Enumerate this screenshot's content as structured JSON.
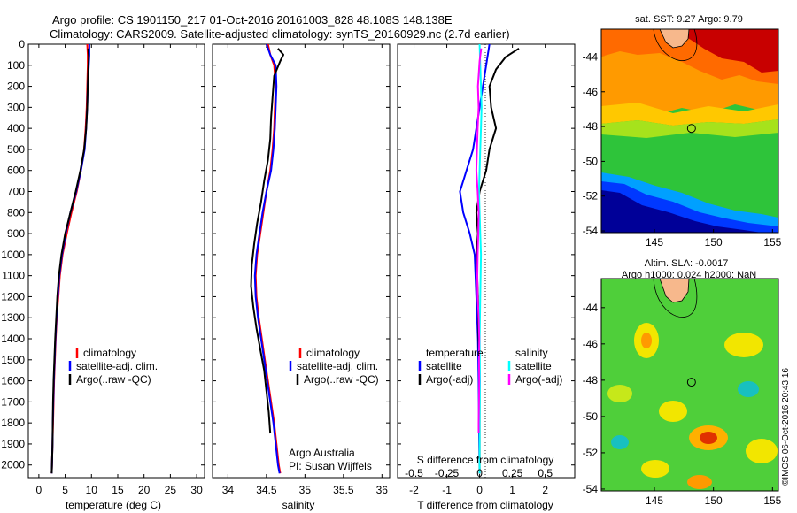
{
  "header": {
    "line1": "Argo profile: CS 1901150_217 01-Oct-2016 20161003_828 48.108S 148.138E",
    "line2": "Climatology: CARS2009. Satellite-adjusted climatology: synTS_20160929.nc (2.7d earlier)"
  },
  "colors": {
    "climatology": "#ff0000",
    "satellite": "#0000ff",
    "argo": "#000000",
    "salinity_satellite": "#00ffff",
    "salinity_argo": "#ff00ff"
  },
  "chart_data": [
    {
      "id": "temperature",
      "type": "line",
      "xlabel": "temperature (deg C)",
      "ylabel": "",
      "xlim": [
        -2,
        31.5
      ],
      "ylim": [
        2060,
        0
      ],
      "xticks": [
        0,
        5,
        10,
        15,
        20,
        25,
        30
      ],
      "yticks": [
        0,
        100,
        200,
        300,
        400,
        500,
        600,
        700,
        800,
        900,
        1000,
        1100,
        1200,
        1300,
        1400,
        1500,
        1600,
        1700,
        1800,
        1900,
        2000
      ],
      "legend": {
        "position": "lower-center",
        "entries": [
          "climatology",
          "satellite-adj. clim.",
          "Argo(..raw -QC)"
        ]
      },
      "series": [
        {
          "name": "climatology",
          "color": "#ff0000",
          "points": [
            [
              9.2,
              0
            ],
            [
              9.3,
              50
            ],
            [
              9.3,
              100
            ],
            [
              9.2,
              200
            ],
            [
              9.1,
              300
            ],
            [
              8.9,
              400
            ],
            [
              8.6,
              500
            ],
            [
              8.0,
              600
            ],
            [
              7.2,
              700
            ],
            [
              6.2,
              800
            ],
            [
              5.3,
              900
            ],
            [
              4.5,
              1000
            ],
            [
              4.0,
              1100
            ],
            [
              3.7,
              1200
            ],
            [
              3.4,
              1300
            ],
            [
              3.2,
              1400
            ],
            [
              3.05,
              1500
            ],
            [
              2.9,
              1600
            ],
            [
              2.8,
              1700
            ],
            [
              2.7,
              1800
            ],
            [
              2.6,
              1900
            ],
            [
              2.5,
              2000
            ],
            [
              2.45,
              2040
            ]
          ]
        },
        {
          "name": "satellite-adj. clim.",
          "color": "#0000ff",
          "points": [
            [
              9.6,
              0
            ],
            [
              9.6,
              50
            ],
            [
              9.5,
              100
            ],
            [
              9.3,
              200
            ],
            [
              9.2,
              300
            ],
            [
              9.0,
              400
            ],
            [
              8.7,
              500
            ],
            [
              8.0,
              600
            ],
            [
              7.1,
              700
            ],
            [
              6.0,
              800
            ],
            [
              5.1,
              900
            ],
            [
              4.4,
              1000
            ],
            [
              3.9,
              1100
            ],
            [
              3.6,
              1200
            ],
            [
              3.35,
              1300
            ],
            [
              3.15,
              1400
            ],
            [
              3.0,
              1500
            ],
            [
              2.85,
              1600
            ],
            [
              2.75,
              1700
            ],
            [
              2.65,
              1800
            ],
            [
              2.6,
              1900
            ],
            [
              2.5,
              2000
            ],
            [
              2.45,
              2040
            ]
          ]
        },
        {
          "name": "Argo(..raw -QC)",
          "color": "#000000",
          "points": [
            [
              9.4,
              20
            ],
            [
              9.5,
              60
            ],
            [
              9.4,
              120
            ],
            [
              9.3,
              200
            ],
            [
              9.2,
              300
            ],
            [
              9.0,
              400
            ],
            [
              8.6,
              500
            ],
            [
              7.9,
              600
            ],
            [
              7.0,
              700
            ],
            [
              6.0,
              800
            ],
            [
              5.0,
              900
            ],
            [
              4.3,
              1000
            ],
            [
              3.8,
              1100
            ],
            [
              3.5,
              1200
            ],
            [
              3.3,
              1300
            ],
            [
              3.1,
              1400
            ],
            [
              2.95,
              1500
            ],
            [
              2.8,
              1600
            ],
            [
              2.7,
              1700
            ],
            [
              2.65,
              1800
            ],
            [
              2.6,
              1900
            ],
            [
              2.5,
              2000
            ],
            [
              2.45,
              2040
            ]
          ]
        }
      ]
    },
    {
      "id": "salinity",
      "type": "line",
      "xlabel": "salinity",
      "ylabel": "",
      "xlim": [
        33.8,
        36.1
      ],
      "ylim": [
        2060,
        0
      ],
      "xticks": [
        34,
        34.5,
        35,
        35.5,
        36
      ],
      "legend": {
        "position": "lower-center",
        "entries": [
          "climatology",
          "satellite-adj. clim.",
          "Argo(..raw -QC)"
        ]
      },
      "annotation": {
        "line1": "Argo Australia",
        "line2": "PI: Susan Wijffels"
      },
      "series": [
        {
          "name": "climatology",
          "color": "#ff0000",
          "points": [
            [
              34.52,
              0
            ],
            [
              34.55,
              50
            ],
            [
              34.6,
              100
            ],
            [
              34.62,
              200
            ],
            [
              34.61,
              300
            ],
            [
              34.6,
              400
            ],
            [
              34.58,
              500
            ],
            [
              34.55,
              600
            ],
            [
              34.5,
              700
            ],
            [
              34.46,
              800
            ],
            [
              34.42,
              900
            ],
            [
              34.38,
              1000
            ],
            [
              34.36,
              1100
            ],
            [
              34.37,
              1200
            ],
            [
              34.4,
              1300
            ],
            [
              34.44,
              1400
            ],
            [
              34.48,
              1500
            ],
            [
              34.52,
              1600
            ],
            [
              34.56,
              1700
            ],
            [
              34.6,
              1800
            ],
            [
              34.63,
              1900
            ],
            [
              34.66,
              2000
            ],
            [
              34.68,
              2040
            ]
          ]
        },
        {
          "name": "satellite-adj. clim.",
          "color": "#0000ff",
          "points": [
            [
              34.5,
              0
            ],
            [
              34.55,
              50
            ],
            [
              34.62,
              100
            ],
            [
              34.63,
              200
            ],
            [
              34.62,
              300
            ],
            [
              34.61,
              400
            ],
            [
              34.59,
              500
            ],
            [
              34.56,
              600
            ],
            [
              34.5,
              700
            ],
            [
              34.45,
              800
            ],
            [
              34.41,
              900
            ],
            [
              34.37,
              1000
            ],
            [
              34.35,
              1100
            ],
            [
              34.36,
              1200
            ],
            [
              34.39,
              1300
            ],
            [
              34.43,
              1400
            ],
            [
              34.47,
              1500
            ],
            [
              34.51,
              1600
            ],
            [
              34.55,
              1700
            ],
            [
              34.59,
              1800
            ],
            [
              34.62,
              1900
            ],
            [
              34.65,
              2000
            ],
            [
              34.67,
              2040
            ]
          ]
        },
        {
          "name": "Argo(..raw -QC)",
          "color": "#000000",
          "points": [
            [
              34.65,
              20
            ],
            [
              34.72,
              50
            ],
            [
              34.68,
              80
            ],
            [
              34.6,
              150
            ],
            [
              34.58,
              250
            ],
            [
              34.56,
              350
            ],
            [
              34.55,
              450
            ],
            [
              34.52,
              550
            ],
            [
              34.47,
              650
            ],
            [
              34.43,
              750
            ],
            [
              34.38,
              850
            ],
            [
              34.34,
              950
            ],
            [
              34.31,
              1050
            ],
            [
              34.3,
              1150
            ],
            [
              34.33,
              1250
            ],
            [
              34.37,
              1350
            ],
            [
              34.42,
              1450
            ],
            [
              34.47,
              1550
            ],
            [
              34.5,
              1650
            ],
            [
              34.53,
              1750
            ],
            [
              34.55,
              1850
            ]
          ]
        }
      ]
    },
    {
      "id": "difference",
      "type": "line",
      "xlabel": "T difference from climatology",
      "xlabel_top": "S difference from climatology",
      "xlim": [
        -2.5,
        2.9
      ],
      "ylim": [
        2060,
        0
      ],
      "xticks": [
        -2,
        -1,
        0,
        1,
        2
      ],
      "xtick_labels": [
        "-2",
        "-1",
        "0",
        "1",
        "2"
      ],
      "top_tick_labels": [
        "-0.5",
        "-0.25",
        "0",
        "0.25",
        "0.5"
      ],
      "legend": {
        "position": "lower-center",
        "temperature_heading": "temperature",
        "salinity_heading": "salinity",
        "temperature_entries": [
          "satellite",
          "Argo(-adj)"
        ],
        "salinity_entries": [
          "satellite",
          "Argo(-adj)"
        ]
      },
      "series": [
        {
          "name": "T satellite",
          "color": "#0000ff",
          "points": [
            [
              0.3,
              0
            ],
            [
              0.2,
              100
            ],
            [
              0.1,
              200
            ],
            [
              0.0,
              300
            ],
            [
              -0.1,
              400
            ],
            [
              -0.2,
              500
            ],
            [
              -0.4,
              600
            ],
            [
              -0.6,
              700
            ],
            [
              -0.5,
              800
            ],
            [
              -0.3,
              900
            ],
            [
              -0.15,
              1000
            ],
            [
              -0.1,
              1200
            ],
            [
              -0.05,
              1400
            ],
            [
              -0.03,
              1600
            ],
            [
              -0.02,
              1800
            ],
            [
              0.0,
              2040
            ]
          ]
        },
        {
          "name": "T Argo(-adj)",
          "color": "#000000",
          "points": [
            [
              1.2,
              20
            ],
            [
              0.8,
              60
            ],
            [
              0.5,
              120
            ],
            [
              0.3,
              200
            ],
            [
              0.35,
              300
            ],
            [
              0.5,
              400
            ],
            [
              0.3,
              500
            ],
            [
              0.2,
              600
            ],
            [
              0.0,
              700
            ],
            [
              -0.1,
              800
            ],
            [
              -0.05,
              900
            ],
            [
              -0.1,
              1000
            ],
            [
              -0.05,
              1200
            ],
            [
              -0.03,
              1400
            ],
            [
              0.0,
              1600
            ],
            [
              0.0,
              1800
            ],
            [
              0.0,
              2040
            ]
          ]
        },
        {
          "name": "S satellite",
          "color": "#00ffff",
          "points": [
            [
              0.0,
              0
            ],
            [
              0.02,
              100
            ],
            [
              0.04,
              200
            ],
            [
              0.06,
              300
            ],
            [
              0.04,
              400
            ],
            [
              0.02,
              500
            ],
            [
              0.0,
              600
            ],
            [
              -0.02,
              700
            ],
            [
              0.0,
              800
            ],
            [
              0.02,
              900
            ],
            [
              0.04,
              1000
            ],
            [
              0.02,
              1200
            ],
            [
              0.0,
              1400
            ],
            [
              0.01,
              1600
            ],
            [
              0.0,
              1800
            ],
            [
              0.0,
              2040
            ]
          ]
        },
        {
          "name": "S Argo(-adj)",
          "color": "#ff00ff",
          "points": [
            [
              0.05,
              20
            ],
            [
              0.0,
              80
            ],
            [
              -0.05,
              200
            ],
            [
              -0.03,
              300
            ],
            [
              -0.06,
              400
            ],
            [
              -0.08,
              500
            ],
            [
              -0.1,
              600
            ],
            [
              -0.06,
              700
            ],
            [
              -0.03,
              800
            ],
            [
              -0.04,
              900
            ],
            [
              -0.06,
              1000
            ],
            [
              -0.07,
              1100
            ],
            [
              -0.06,
              1200
            ],
            [
              -0.03,
              1300
            ],
            [
              -0.01,
              1400
            ],
            [
              -0.02,
              1500
            ],
            [
              -0.01,
              1600
            ],
            [
              -0.02,
              1700
            ],
            [
              -0.03,
              1800
            ],
            [
              -0.03,
              1850
            ]
          ]
        }
      ]
    },
    {
      "id": "sst_map",
      "type": "heatmap",
      "title": "sat. SST: 9.27  Argo: 9.79",
      "xticks": [
        145,
        150,
        155
      ],
      "yticks": [
        -44,
        -46,
        -48,
        -50,
        -52,
        -54
      ],
      "xlim": [
        140.5,
        155.5
      ],
      "ylim": [
        -54.1,
        -42.4
      ],
      "float_position": {
        "lon": 148.138,
        "lat": -48.108
      }
    },
    {
      "id": "sla_map",
      "type": "heatmap",
      "title_line1": "Altim. SLA: -0.0017",
      "title_line2": "Argo h1000: 0.024 h2000: NaN",
      "xticks": [
        145,
        150,
        155
      ],
      "yticks": [
        -44,
        -46,
        -48,
        -50,
        -52,
        -54
      ],
      "xlim": [
        140.5,
        155.5
      ],
      "ylim": [
        -54.1,
        -42.4
      ],
      "float_position": {
        "lon": 148.138,
        "lat": -48.108
      },
      "credit": "©IMOS 06-Oct-2016 20:43:16"
    }
  ]
}
